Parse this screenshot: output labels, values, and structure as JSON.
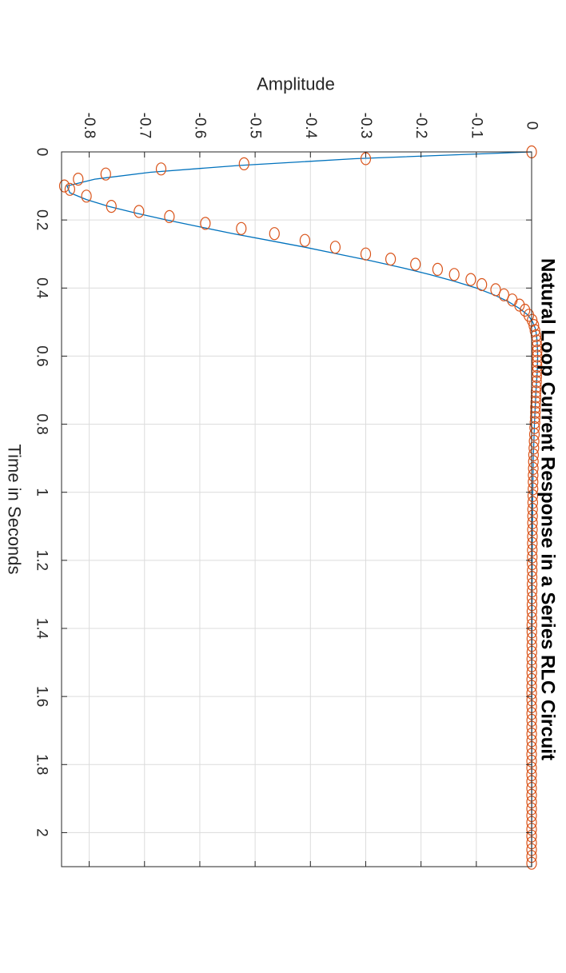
{
  "chart_data": {
    "type": "line",
    "title": "Natural Loop Current Response in a Series RLC Circuit",
    "xlabel": "Time in Seconds",
    "ylabel": "Amplitude",
    "xlim": [
      0,
      2.1
    ],
    "ylim": [
      -0.85,
      0
    ],
    "x_ticks": [
      "0",
      "0.2",
      "0.4",
      "0.6",
      "0.8",
      "1",
      "1.2",
      "1.4",
      "1.6",
      "1.8",
      "2"
    ],
    "y_ticks": [
      "-0.8",
      "-0.7",
      "-0.6",
      "-0.5",
      "-0.4",
      "-0.3",
      "-0.2",
      "-0.1",
      "0"
    ],
    "grid": true,
    "orientation": "rotated 90 degrees clockwise",
    "series": [
      {
        "kind": "line",
        "color": "#0072bd",
        "x": [
          0,
          0.02,
          0.04,
          0.06,
          0.08,
          0.1,
          0.12,
          0.14,
          0.16,
          0.18,
          0.2,
          0.22,
          0.24,
          0.26,
          0.28,
          0.3,
          0.32,
          0.34,
          0.36,
          0.38,
          0.4,
          0.42,
          0.44,
          0.46,
          0.48,
          0.5,
          0.52,
          0.54,
          0.56,
          0.58,
          0.6,
          0.65,
          0.7,
          0.8,
          0.9,
          1.0,
          1.2,
          1.5,
          2.1
        ],
        "y": [
          0,
          -0.32,
          -0.53,
          -0.69,
          -0.79,
          -0.84,
          -0.835,
          -0.805,
          -0.765,
          -0.715,
          -0.66,
          -0.6,
          -0.54,
          -0.475,
          -0.41,
          -0.35,
          -0.29,
          -0.235,
          -0.185,
          -0.14,
          -0.1,
          -0.068,
          -0.042,
          -0.022,
          -0.006,
          0.002,
          0.007,
          0.009,
          0.01,
          0.0105,
          0.011,
          0.01,
          0.008,
          0.005,
          0.003,
          0.002,
          0.001,
          0.0005,
          0
        ]
      },
      {
        "kind": "markers",
        "marker": "circle",
        "color": "#d95319",
        "x": [
          0,
          0.02,
          0.035,
          0.05,
          0.065,
          0.08,
          0.1,
          0.11,
          0.13,
          0.16,
          0.175,
          0.19,
          0.21,
          0.225,
          0.24,
          0.26,
          0.28,
          0.3,
          0.315,
          0.33,
          0.345,
          0.36,
          0.375,
          0.39,
          0.405,
          0.42,
          0.435,
          0.45,
          0.465,
          0.48,
          0.495,
          0.51,
          0.525,
          0.54,
          0.555,
          0.57,
          0.585,
          0.6,
          0.615,
          0.63,
          0.645,
          0.66,
          0.675,
          0.69,
          0.705,
          0.72,
          0.735,
          0.75,
          0.765,
          0.78,
          0.795,
          0.81,
          0.83,
          0.85,
          0.87,
          0.89,
          0.91,
          0.93,
          0.95,
          0.97,
          0.99,
          1.01,
          1.03,
          1.05,
          1.07,
          1.09,
          1.11,
          1.13,
          1.15,
          1.17,
          1.19,
          1.21,
          1.23,
          1.25,
          1.27,
          1.29,
          1.31,
          1.33,
          1.35,
          1.37,
          1.39,
          1.41,
          1.43,
          1.45,
          1.47,
          1.49,
          1.51,
          1.53,
          1.55,
          1.57,
          1.59,
          1.61,
          1.63,
          1.65,
          1.67,
          1.69,
          1.71,
          1.73,
          1.75,
          1.77,
          1.79,
          1.81,
          1.83,
          1.85,
          1.87,
          1.89,
          1.91,
          1.93,
          1.95,
          1.97,
          1.99,
          2.01,
          2.03,
          2.05,
          2.07,
          2.09
        ],
        "y": [
          0,
          -0.3,
          -0.52,
          -0.67,
          -0.77,
          -0.82,
          -0.845,
          -0.835,
          -0.805,
          -0.76,
          -0.71,
          -0.655,
          -0.59,
          -0.525,
          -0.465,
          -0.41,
          -0.355,
          -0.3,
          -0.255,
          -0.21,
          -0.17,
          -0.14,
          -0.11,
          -0.09,
          -0.065,
          -0.05,
          -0.035,
          -0.022,
          -0.012,
          -0.005,
          0.001,
          0.004,
          0.006,
          0.008,
          0.009,
          0.0095,
          0.01,
          0.01,
          0.01,
          0.0098,
          0.0095,
          0.0092,
          0.009,
          0.0085,
          0.008,
          0.0078,
          0.0075,
          0.007,
          0.0068,
          0.0065,
          0.006,
          0.0055,
          0.005,
          0.0045,
          0.004,
          0.0035,
          0.0032,
          0.003,
          0.0028,
          0.0026,
          0.0024,
          0.0022,
          0.002,
          0.0018,
          0.0017,
          0.0016,
          0.0015,
          0.0014,
          0.0013,
          0.0012,
          0.0011,
          0.001,
          0.001,
          0.0009,
          0.0008,
          0.0008,
          0.0007,
          0.0007,
          0.0006,
          0.0006,
          0.0005,
          0.0005,
          0.0004,
          0.0004,
          0.0004,
          0.0003,
          0.0003,
          0.0003,
          0.0002,
          0.0002,
          0.0002,
          0.0002,
          0.0001,
          0.0001,
          0.0001,
          0.0001,
          0.0001,
          0.0001,
          0,
          0,
          0,
          0,
          0,
          0,
          0,
          0,
          0,
          0,
          0,
          0,
          0,
          0,
          0,
          0,
          0,
          0
        ]
      }
    ]
  }
}
